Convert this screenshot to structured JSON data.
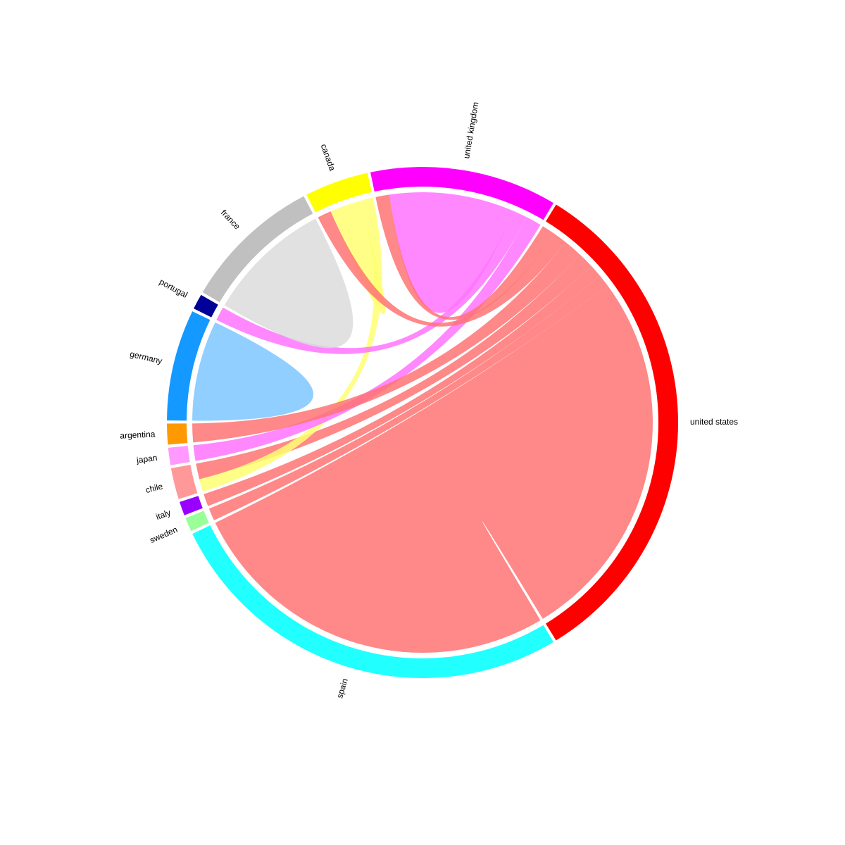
{
  "chart_data": {
    "type": "chord",
    "title": "",
    "groups": [
      {
        "name": "united states",
        "color": "#ff0000"
      },
      {
        "name": "united kingdom",
        "color": "#ff00ff"
      },
      {
        "name": "canada",
        "color": "#ffff00"
      },
      {
        "name": "france",
        "color": "#c0c0c0"
      },
      {
        "name": "portugal",
        "color": "#000099"
      },
      {
        "name": "germany",
        "color": "#1399ff"
      },
      {
        "name": "argentina",
        "color": "#ff9900"
      },
      {
        "name": "japan",
        "color": "#ff99ff"
      },
      {
        "name": "chile",
        "color": "#ff9999"
      },
      {
        "name": "italy",
        "color": "#9900ff"
      },
      {
        "name": "sweden",
        "color": "#99ff99"
      },
      {
        "name": "spain",
        "color": "#22ffff"
      }
    ],
    "links": [
      {
        "source": "spain",
        "target": "united states",
        "value": 60
      },
      {
        "source": "sweden",
        "target": "united states",
        "value": 2
      },
      {
        "source": "italy",
        "target": "united states",
        "value": 2
      },
      {
        "source": "chile",
        "target": "united states",
        "value": 2.5
      },
      {
        "source": "chile",
        "target": "canada",
        "value": 2
      },
      {
        "source": "japan",
        "target": "united kingdom",
        "value": 2.5
      },
      {
        "source": "argentina",
        "target": "united states",
        "value": 3
      },
      {
        "source": "germany",
        "target": "germany",
        "value": 8
      },
      {
        "source": "portugal",
        "target": "united kingdom",
        "value": 2.2
      },
      {
        "source": "france",
        "target": "france",
        "value": 10
      },
      {
        "source": "canada",
        "target": "canada",
        "value": 2.5
      },
      {
        "source": "canada",
        "target": "united states",
        "value": 2.2
      },
      {
        "source": "united kingdom",
        "target": "united kingdom",
        "value": 10
      },
      {
        "source": "united kingdom",
        "target": "united states",
        "value": 2.2
      }
    ]
  }
}
